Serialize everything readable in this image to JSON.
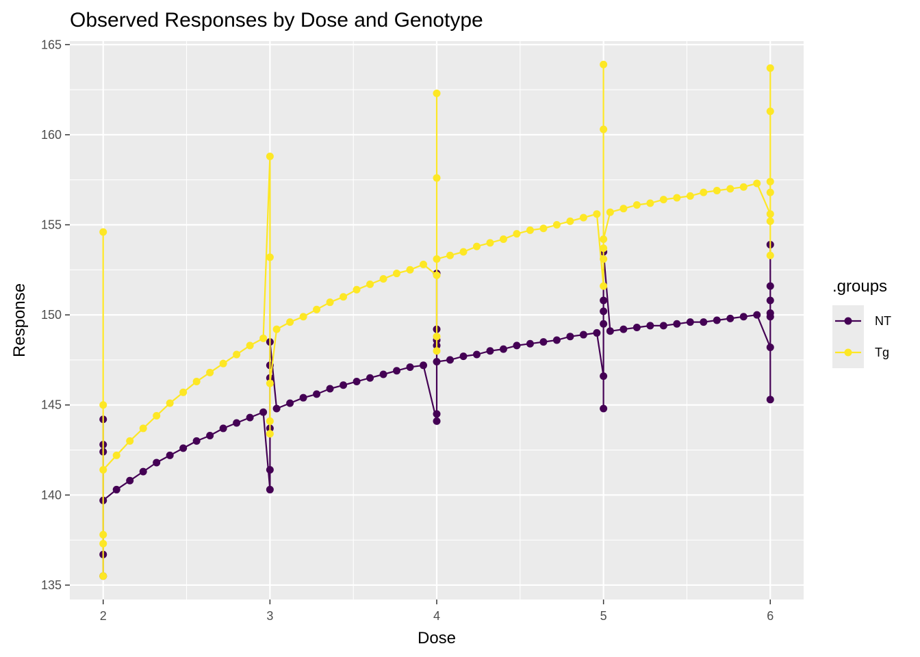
{
  "chart_data": {
    "type": "line",
    "title": "Observed Responses by Dose and Genotype",
    "xlabel": "Dose",
    "ylabel": "Response",
    "xlim": [
      1.8,
      6.2
    ],
    "ylim": [
      134.2,
      165.2
    ],
    "x_ticks": [
      2,
      3,
      4,
      5,
      6
    ],
    "y_ticks": [
      135,
      140,
      145,
      150,
      155,
      160,
      165
    ],
    "grid": true,
    "legend": {
      "title": ".groups",
      "placement": "right"
    },
    "series": [
      {
        "name": "NT",
        "color": "#440154",
        "points": [
          [
            2,
            135.5
          ],
          [
            2,
            136.7
          ],
          [
            2,
            144.2
          ],
          [
            2,
            142.8
          ],
          [
            2,
            142.4
          ],
          [
            2,
            139.7
          ],
          [
            2.08,
            140.3
          ],
          [
            2.16,
            140.8
          ],
          [
            2.24,
            141.3
          ],
          [
            2.32,
            141.8
          ],
          [
            2.4,
            142.2
          ],
          [
            2.48,
            142.6
          ],
          [
            2.56,
            143.0
          ],
          [
            2.64,
            143.3
          ],
          [
            2.72,
            143.7
          ],
          [
            2.8,
            144.0
          ],
          [
            2.88,
            144.3
          ],
          [
            2.96,
            144.6
          ],
          [
            3,
            140.3
          ],
          [
            3,
            141.4
          ],
          [
            3,
            143.7
          ],
          [
            3,
            146.5
          ],
          [
            3,
            147.2
          ],
          [
            3,
            148.5
          ],
          [
            3.04,
            144.8
          ],
          [
            3.12,
            145.1
          ],
          [
            3.2,
            145.4
          ],
          [
            3.28,
            145.6
          ],
          [
            3.36,
            145.9
          ],
          [
            3.44,
            146.1
          ],
          [
            3.52,
            146.3
          ],
          [
            3.6,
            146.5
          ],
          [
            3.68,
            146.7
          ],
          [
            3.76,
            146.9
          ],
          [
            3.84,
            147.1
          ],
          [
            3.92,
            147.2
          ],
          [
            4,
            144.1
          ],
          [
            4,
            144.5
          ],
          [
            4,
            148.3
          ],
          [
            4,
            148.6
          ],
          [
            4,
            149.2
          ],
          [
            4,
            152.3
          ],
          [
            4,
            147.4
          ],
          [
            4.08,
            147.5
          ],
          [
            4.16,
            147.7
          ],
          [
            4.24,
            147.8
          ],
          [
            4.32,
            148.0
          ],
          [
            4.4,
            148.1
          ],
          [
            4.48,
            148.3
          ],
          [
            4.56,
            148.4
          ],
          [
            4.64,
            148.5
          ],
          [
            4.72,
            148.6
          ],
          [
            4.8,
            148.8
          ],
          [
            4.88,
            148.9
          ],
          [
            4.96,
            149.0
          ],
          [
            5,
            146.6
          ],
          [
            5,
            144.8
          ],
          [
            5,
            149.5
          ],
          [
            5,
            150.2
          ],
          [
            5,
            150.8
          ],
          [
            5,
            153.5
          ],
          [
            5.04,
            149.1
          ],
          [
            5.12,
            149.2
          ],
          [
            5.2,
            149.3
          ],
          [
            5.28,
            149.4
          ],
          [
            5.36,
            149.4
          ],
          [
            5.44,
            149.5
          ],
          [
            5.52,
            149.6
          ],
          [
            5.6,
            149.6
          ],
          [
            5.68,
            149.7
          ],
          [
            5.76,
            149.8
          ],
          [
            5.84,
            149.9
          ],
          [
            5.92,
            150.0
          ],
          [
            6,
            148.2
          ],
          [
            6,
            145.3
          ],
          [
            6,
            149.9
          ],
          [
            6,
            150.1
          ],
          [
            6,
            150.8
          ],
          [
            6,
            151.6
          ],
          [
            6,
            153.9
          ]
        ]
      },
      {
        "name": "Tg",
        "color": "#FDE725",
        "points": [
          [
            2,
            137.3
          ],
          [
            2,
            135.5
          ],
          [
            2,
            137.8
          ],
          [
            2,
            154.6
          ],
          [
            2,
            145.0
          ],
          [
            2,
            141.4
          ],
          [
            2.08,
            142.2
          ],
          [
            2.16,
            143.0
          ],
          [
            2.24,
            143.7
          ],
          [
            2.32,
            144.4
          ],
          [
            2.4,
            145.1
          ],
          [
            2.48,
            145.7
          ],
          [
            2.56,
            146.3
          ],
          [
            2.64,
            146.8
          ],
          [
            2.72,
            147.3
          ],
          [
            2.8,
            147.8
          ],
          [
            2.88,
            148.3
          ],
          [
            2.96,
            148.7
          ],
          [
            3,
            158.8
          ],
          [
            3,
            153.2
          ],
          [
            3,
            143.4
          ],
          [
            3,
            144.1
          ],
          [
            3,
            146.2
          ],
          [
            3.04,
            149.2
          ],
          [
            3.12,
            149.6
          ],
          [
            3.2,
            149.9
          ],
          [
            3.28,
            150.3
          ],
          [
            3.36,
            150.7
          ],
          [
            3.44,
            151.0
          ],
          [
            3.52,
            151.4
          ],
          [
            3.6,
            151.7
          ],
          [
            3.68,
            152.0
          ],
          [
            3.76,
            152.3
          ],
          [
            3.84,
            152.5
          ],
          [
            3.92,
            152.8
          ],
          [
            4,
            152.2
          ],
          [
            4,
            162.3
          ],
          [
            4,
            157.6
          ],
          [
            4,
            148.0
          ],
          [
            4,
            148.8
          ],
          [
            4,
            153.1
          ],
          [
            4.08,
            153.3
          ],
          [
            4.16,
            153.5
          ],
          [
            4.24,
            153.8
          ],
          [
            4.32,
            154.0
          ],
          [
            4.4,
            154.2
          ],
          [
            4.48,
            154.5
          ],
          [
            4.56,
            154.7
          ],
          [
            4.64,
            154.8
          ],
          [
            4.72,
            155.0
          ],
          [
            4.8,
            155.2
          ],
          [
            4.88,
            155.4
          ],
          [
            4.96,
            155.6
          ],
          [
            5,
            151.6
          ],
          [
            5,
            163.9
          ],
          [
            5,
            160.3
          ],
          [
            5,
            153.1
          ],
          [
            5,
            153.7
          ],
          [
            5,
            154.2
          ],
          [
            5.04,
            155.7
          ],
          [
            5.12,
            155.9
          ],
          [
            5.2,
            156.1
          ],
          [
            5.28,
            156.2
          ],
          [
            5.36,
            156.4
          ],
          [
            5.44,
            156.5
          ],
          [
            5.52,
            156.6
          ],
          [
            5.6,
            156.8
          ],
          [
            5.68,
            156.9
          ],
          [
            5.76,
            157.0
          ],
          [
            5.84,
            157.1
          ],
          [
            5.92,
            157.3
          ],
          [
            6,
            155.6
          ],
          [
            6,
            153.3
          ],
          [
            6,
            155.2
          ],
          [
            6,
            157.4
          ],
          [
            6,
            156.8
          ],
          [
            6,
            161.3
          ],
          [
            6,
            163.7
          ]
        ]
      }
    ]
  }
}
